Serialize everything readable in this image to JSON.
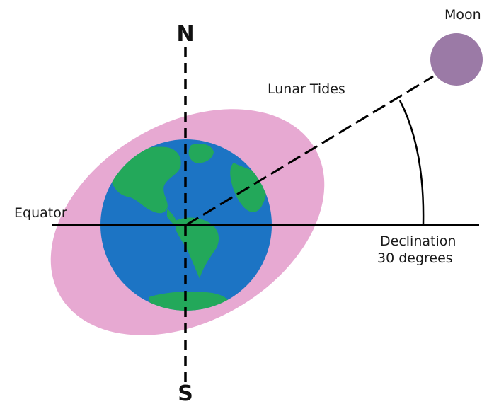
{
  "labels": {
    "north": "N",
    "south": "S",
    "moon": "Moon",
    "lunar_tides": "Lunar Tides",
    "equator": "Equator",
    "declination_line1": "Declination",
    "declination_line2": "30 degrees"
  },
  "colors": {
    "tidal_bulge": "#e7a9d2",
    "ocean": "#1c74c4",
    "land": "#23a85a",
    "moon": "#9b7aa6",
    "lines": "#000000"
  },
  "icons": {
    "earth": "earth-globe",
    "moon": "moon-disc"
  }
}
